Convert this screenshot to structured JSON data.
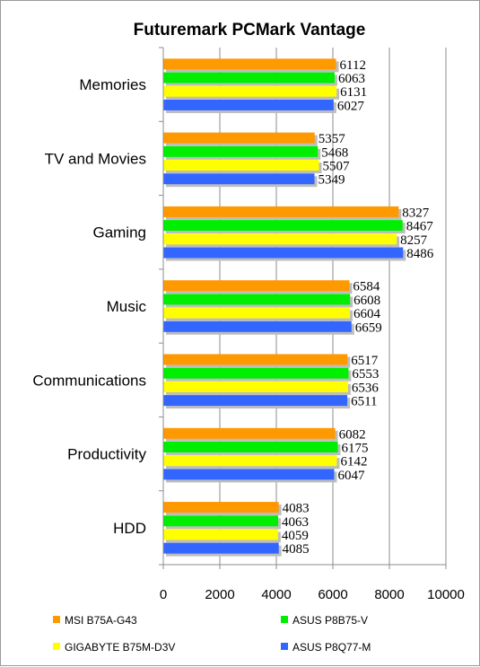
{
  "chart_data": {
    "type": "bar",
    "orientation": "horizontal",
    "title": "Futuremark PCMark Vantage",
    "categories": [
      "Memories",
      "TV and Movies",
      "Gaming",
      "Music",
      "Communications",
      "Productivity",
      "HDD"
    ],
    "series": [
      {
        "name": "MSI B75A-G43",
        "color": "#ff9900",
        "values": [
          6112,
          5357,
          8327,
          6584,
          6517,
          6082,
          4083
        ]
      },
      {
        "name": "ASUS P8B75-V",
        "color": "#00ee00",
        "values": [
          6063,
          5468,
          8467,
          6608,
          6553,
          6175,
          4063
        ]
      },
      {
        "name": "GIGABYTE B75M-D3V",
        "color": "#ffff00",
        "values": [
          6131,
          5507,
          8257,
          6604,
          6536,
          6142,
          4059
        ]
      },
      {
        "name": "ASUS P8Q77-M",
        "color": "#3366ff",
        "values": [
          6027,
          5349,
          8486,
          6659,
          6511,
          6047,
          4085
        ]
      }
    ],
    "xlim": [
      0,
      10000
    ],
    "xticks": [
      "0",
      "2000",
      "4000",
      "6000",
      "8000",
      "10000"
    ],
    "grid": true,
    "legend_position": "bottom"
  }
}
